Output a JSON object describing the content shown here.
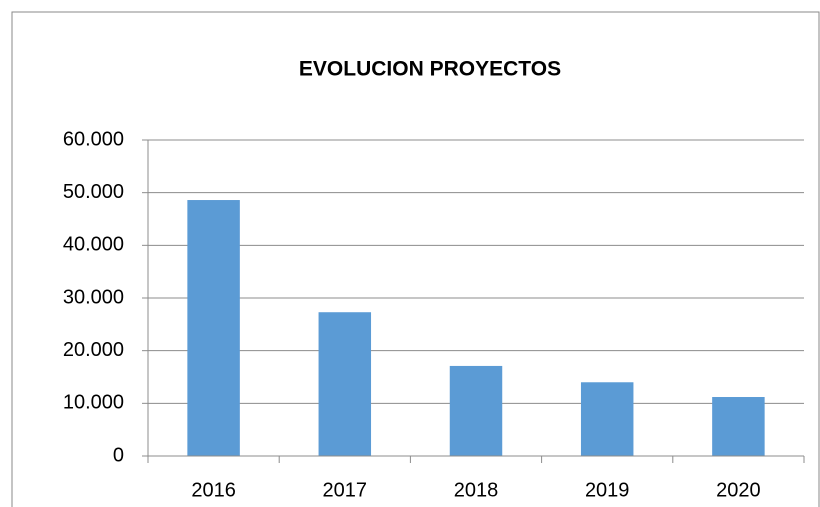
{
  "chart_data": {
    "type": "bar",
    "title": "EVOLUCION  PROYECTOS",
    "categories": [
      "2016",
      "2017",
      "2018",
      "2019",
      "2020"
    ],
    "values": [
      48600,
      27300,
      17100,
      14000,
      11200
    ],
    "color": "#5b9bd5",
    "ylim": [
      0,
      60000
    ],
    "yticks": [
      0,
      {
        "value": 10000,
        "label": "10.000"
      },
      {
        "value": 20000,
        "label": "20.000"
      },
      {
        "value": 30000,
        "label": "30.000"
      },
      {
        "value": 40000,
        "label": "40.000"
      },
      {
        "value": 50000,
        "label": "50.000"
      },
      {
        "value": 60000,
        "label": "60.000"
      }
    ],
    "grid": true
  }
}
